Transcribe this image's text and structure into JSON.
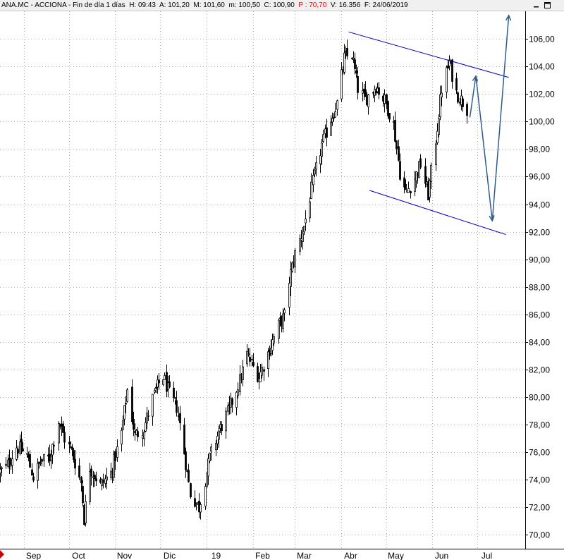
{
  "header": {
    "ticker": "ANA.MC - ACCIONA - Fin de día 1 días",
    "high": "H: 09:43",
    "open": "A: 101,20",
    "max": "M: 101,60",
    "min": "m: 100,50",
    "close": "C: 100,90",
    "p": "P : 70,70",
    "volume": "V: 16.356",
    "date": "F: 24/06/2019"
  },
  "controls": {
    "minimize_icon": "minimize-icon",
    "maximize_icon": "maximize-icon"
  },
  "colors": {
    "candles": "#000000",
    "channel": "#0000cc",
    "projection": "#2f5b8c",
    "grid": "#b0b0b0",
    "header_bg": "#f0f0f0",
    "negative": "#ff0000"
  },
  "chart_data": {
    "type": "candlestick",
    "title": "",
    "y_axis": {
      "position": "right",
      "ticks": [
        "70,00",
        "72,00",
        "74,00",
        "76,00",
        "78,00",
        "80,00",
        "82,00",
        "84,00",
        "86,00",
        "88,00",
        "90,00",
        "92,00",
        "94,00",
        "96,00",
        "98,00",
        "100,00",
        "102,00",
        "104,00",
        "106,00"
      ],
      "range": [
        69.0,
        108.0
      ]
    },
    "x_axis": {
      "ticks": [
        "Sep",
        "Oct",
        "Nov",
        "Dic",
        "19",
        "Feb",
        "Mar",
        "Abr",
        "May",
        "Jun",
        "Jul"
      ],
      "tick_dates": [
        "2018-09-01",
        "2018-10-01",
        "2018-11-01",
        "2018-12-01",
        "2019-01-01",
        "2019-02-01",
        "2019-03-01",
        "2019-04-01",
        "2019-05-01",
        "2019-06-01",
        "2019-07-01"
      ],
      "range": [
        "2018-08-16",
        "2019-08-02"
      ]
    },
    "grid": true,
    "closes": [
      {
        "date": "2018-08-16",
        "value": 74.6
      },
      {
        "date": "2018-08-20",
        "value": 74.9
      },
      {
        "date": "2018-08-27",
        "value": 76.4
      },
      {
        "date": "2018-09-03",
        "value": 75.8
      },
      {
        "date": "2018-09-07",
        "value": 74.2
      },
      {
        "date": "2018-09-12",
        "value": 75.3
      },
      {
        "date": "2018-09-18",
        "value": 75.6
      },
      {
        "date": "2018-09-24",
        "value": 78.3
      },
      {
        "date": "2018-09-28",
        "value": 77.0
      },
      {
        "date": "2018-10-03",
        "value": 76.0
      },
      {
        "date": "2018-10-09",
        "value": 73.8
      },
      {
        "date": "2018-10-11",
        "value": 71.2
      },
      {
        "date": "2018-10-15",
        "value": 74.9
      },
      {
        "date": "2018-10-22",
        "value": 73.6
      },
      {
        "date": "2018-10-29",
        "value": 74.5
      },
      {
        "date": "2018-11-05",
        "value": 77.4
      },
      {
        "date": "2018-11-09",
        "value": 80.5
      },
      {
        "date": "2018-11-14",
        "value": 77.2
      },
      {
        "date": "2018-11-20",
        "value": 77.8
      },
      {
        "date": "2018-11-26",
        "value": 79.9
      },
      {
        "date": "2018-11-30",
        "value": 81.0
      },
      {
        "date": "2018-12-03",
        "value": 81.5
      },
      {
        "date": "2018-12-07",
        "value": 80.2
      },
      {
        "date": "2018-12-12",
        "value": 79.3
      },
      {
        "date": "2018-12-17",
        "value": 76.0
      },
      {
        "date": "2018-12-21",
        "value": 73.0
      },
      {
        "date": "2018-12-27",
        "value": 72.0
      },
      {
        "date": "2019-01-03",
        "value": 75.6
      },
      {
        "date": "2019-01-09",
        "value": 77.5
      },
      {
        "date": "2019-01-16",
        "value": 79.1
      },
      {
        "date": "2019-01-23",
        "value": 81.2
      },
      {
        "date": "2019-01-28",
        "value": 83.1
      },
      {
        "date": "2019-02-01",
        "value": 82.2
      },
      {
        "date": "2019-02-05",
        "value": 81.5
      },
      {
        "date": "2019-02-11",
        "value": 83.2
      },
      {
        "date": "2019-02-18",
        "value": 85.2
      },
      {
        "date": "2019-02-22",
        "value": 85.9
      },
      {
        "date": "2019-02-25",
        "value": 88.5
      },
      {
        "date": "2019-03-01",
        "value": 90.4
      },
      {
        "date": "2019-03-07",
        "value": 92.4
      },
      {
        "date": "2019-03-13",
        "value": 95.6
      },
      {
        "date": "2019-03-19",
        "value": 98.3
      },
      {
        "date": "2019-03-25",
        "value": 100.2
      },
      {
        "date": "2019-03-29",
        "value": 101.3
      },
      {
        "date": "2019-04-03",
        "value": 104.6
      },
      {
        "date": "2019-04-08",
        "value": 104.9
      },
      {
        "date": "2019-04-12",
        "value": 102.4
      },
      {
        "date": "2019-04-17",
        "value": 101.6
      },
      {
        "date": "2019-04-24",
        "value": 102.6
      },
      {
        "date": "2019-04-30",
        "value": 101.5
      },
      {
        "date": "2019-05-06",
        "value": 99.8
      },
      {
        "date": "2019-05-10",
        "value": 96.3
      },
      {
        "date": "2019-05-14",
        "value": 94.8
      },
      {
        "date": "2019-05-20",
        "value": 95.9
      },
      {
        "date": "2019-05-24",
        "value": 96.9
      },
      {
        "date": "2019-05-29",
        "value": 94.7
      },
      {
        "date": "2019-06-03",
        "value": 98.7
      },
      {
        "date": "2019-06-07",
        "value": 102.4
      },
      {
        "date": "2019-06-12",
        "value": 104.3
      },
      {
        "date": "2019-06-17",
        "value": 102.1
      },
      {
        "date": "2019-06-24",
        "value": 100.9
      }
    ],
    "channel_lines": [
      {
        "name": "",
        "start": {
          "date": "2019-04-06",
          "value": 106.5
        },
        "end": {
          "date": "2019-07-22",
          "value": 103.2
        }
      },
      {
        "name": "",
        "start": {
          "date": "2019-04-20",
          "value": 95.0
        },
        "end": {
          "date": "2019-07-20",
          "value": 91.8
        }
      }
    ],
    "projection": [
      {
        "date": "2019-06-26",
        "value": 100.3
      },
      {
        "date": "2019-06-30",
        "value": 103.3
      },
      {
        "date": "2019-07-11",
        "value": 92.8
      },
      {
        "date": "2019-07-22",
        "value": 107.7
      }
    ]
  }
}
